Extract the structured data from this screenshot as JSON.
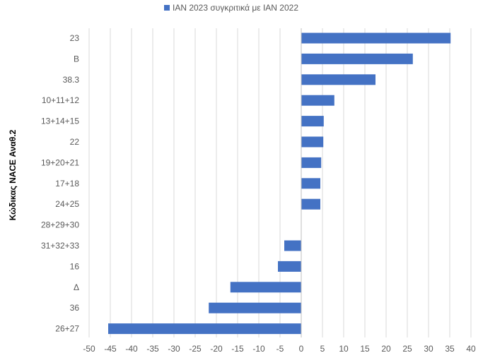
{
  "chart_data": {
    "type": "bar",
    "orientation": "horizontal",
    "categories": [
      "23",
      "B",
      "38.3",
      "10+11+12",
      "13+14+15",
      "22",
      "19+20+21",
      "17+18",
      "24+25",
      "28+29+30",
      "31+32+33",
      "16",
      "Δ",
      "36",
      "26+27"
    ],
    "series": [
      {
        "name": "ΙΑΝ 2023 συγκριτικά με ΙΑΝ 2022",
        "values": [
          35.2,
          26.3,
          17.5,
          7.8,
          5.3,
          5.2,
          4.7,
          4.5,
          4.5,
          0,
          -4,
          -5.5,
          -16.7,
          -21.8,
          -45.5
        ]
      }
    ],
    "xlim": [
      -50,
      40
    ],
    "xticks": [
      "-50",
      "-45",
      "-40",
      "-35",
      "-30",
      "-25",
      "-20",
      "-15",
      "-10",
      "-5",
      "0",
      "5",
      "10",
      "15",
      "20",
      "25",
      "30",
      "35",
      "40"
    ],
    "ylabel": "Κώδικας NACE Αναθ.2",
    "xlabel": "",
    "grid": "vertical",
    "legend_position": "top",
    "bar_color": "#4472C4"
  }
}
